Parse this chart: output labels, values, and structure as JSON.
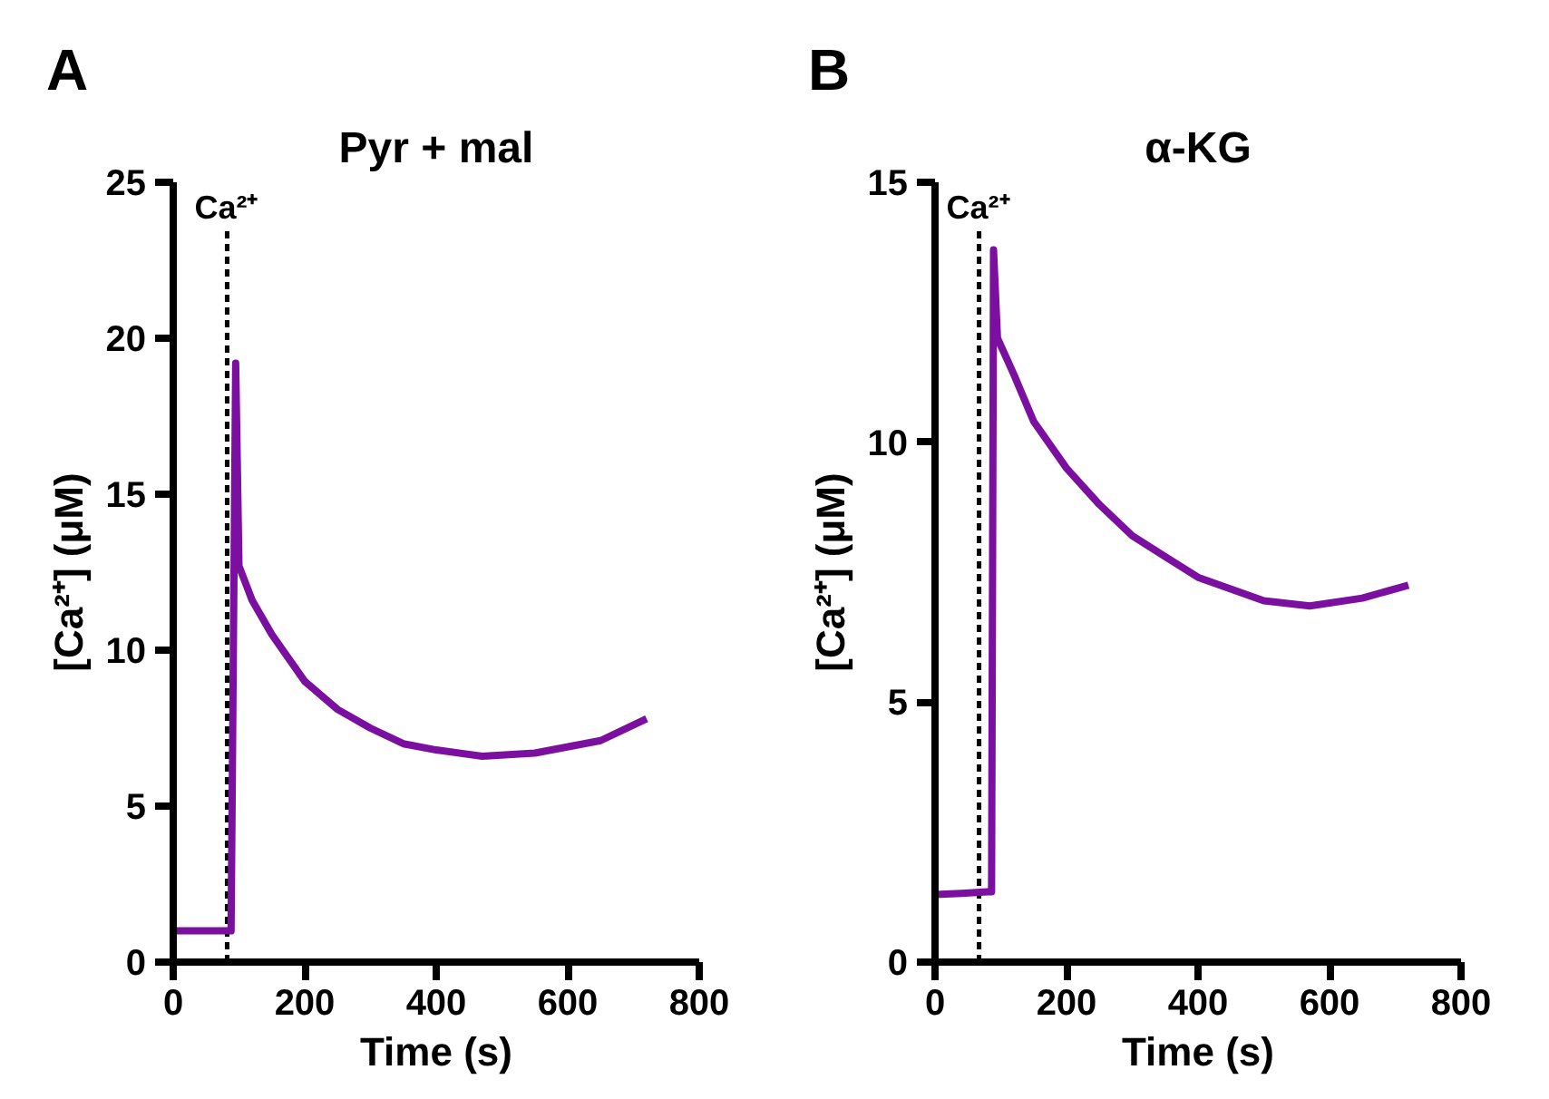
{
  "chart_data": [
    {
      "type": "line",
      "title": "Pyr + mal",
      "annotations": [
        "A"
      ],
      "xlabel": "Time (s)",
      "ylabel": "[Ca²⁺] (μM)",
      "x": [
        0,
        40,
        84,
        88,
        95,
        100,
        120,
        150,
        200,
        250,
        300,
        350,
        400,
        470,
        550,
        650,
        720
      ],
      "series": [
        {
          "color": "#7b0fa0",
          "values": [
            1.0,
            1.0,
            1.0,
            1.0,
            19.2,
            12.7,
            11.6,
            10.5,
            9.0,
            8.1,
            7.5,
            7.0,
            6.8,
            6.6,
            6.7,
            7.1,
            7.8
          ]
        }
      ],
      "xlim": [
        0,
        800
      ],
      "xticks": [
        0,
        200,
        400,
        600,
        800
      ],
      "ylim": [
        0,
        25
      ],
      "yticks": [
        0,
        5,
        10,
        15,
        20,
        25
      ],
      "grid": false,
      "marker": "none",
      "line_style": "solid",
      "ref_lines": [
        {
          "axis": "x",
          "value": 82,
          "label": "Ca²⁺",
          "color": "#000000",
          "line_style": "dashed"
        }
      ]
    },
    {
      "type": "line",
      "title": "α-KG",
      "annotations": [
        "B"
      ],
      "xlabel": "Time (s)",
      "ylabel": "[Ca²⁺] (μM)",
      "x": [
        0,
        40,
        80,
        86,
        89,
        95,
        120,
        150,
        200,
        250,
        300,
        350,
        400,
        500,
        570,
        650,
        720
      ],
      "series": [
        {
          "color": "#7b0fa0",
          "values": [
            1.3,
            1.32,
            1.35,
            1.35,
            13.7,
            12.0,
            11.3,
            10.4,
            9.5,
            8.8,
            8.2,
            7.8,
            7.4,
            6.95,
            6.85,
            7.0,
            7.25
          ]
        }
      ],
      "xlim": [
        0,
        800
      ],
      "xticks": [
        0,
        200,
        400,
        600,
        800
      ],
      "ylim": [
        0,
        15
      ],
      "yticks": [
        0,
        5,
        10,
        15
      ],
      "grid": false,
      "marker": "none",
      "line_style": "solid",
      "ref_lines": [
        {
          "axis": "x",
          "value": 67,
          "label": "Ca²⁺",
          "color": "#000000",
          "line_style": "dashed"
        }
      ]
    }
  ]
}
